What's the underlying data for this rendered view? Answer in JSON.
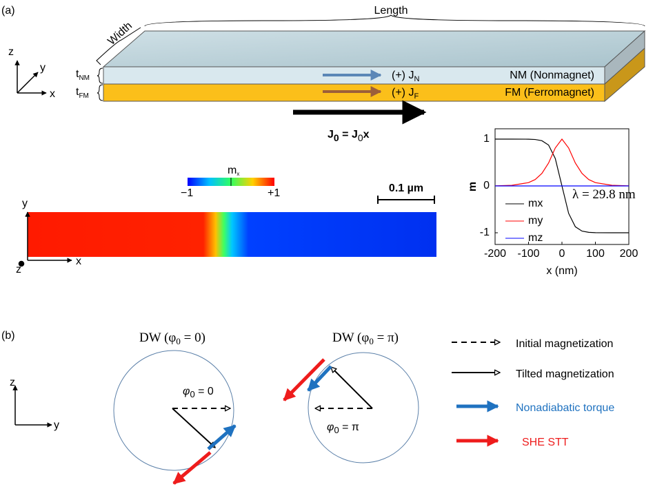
{
  "panel_a": {
    "label": "(a)",
    "length": "Length",
    "width": "Width",
    "axes": {
      "z": "z",
      "y": "y",
      "x": "x"
    },
    "t_nm": {
      "main": "t",
      "sub": "NM"
    },
    "t_fm": {
      "main": "t",
      "sub": "FM"
    },
    "current_n": {
      "main": "(+) J",
      "sub": "N"
    },
    "nm_layer": "NM (Nonmagnet)",
    "current_f": {
      "main": "(+) J",
      "sub": "F"
    },
    "fm_layer": "FM (Ferromagnet)",
    "total_current": {
      "lhs": "J",
      "lhs_sub": "0",
      "eq": " = J",
      "rhs_sub": "0",
      "rhs": "x"
    },
    "colorbar": {
      "label_main": "m",
      "label_sub": "x",
      "min": "−1",
      "max": "+1"
    },
    "scale_bar": "0.1 µm",
    "wire_axes": {
      "y": "y",
      "z": "z",
      "x": "x"
    }
  },
  "chart_data": {
    "type": "line",
    "ylabel": "m",
    "xlabel": "x (nm)",
    "annotation": "λ = 29.8 nm",
    "x": [
      -200,
      -150,
      -100,
      -80,
      -60,
      -40,
      -20,
      0,
      20,
      40,
      60,
      80,
      100,
      150,
      200
    ],
    "series": [
      {
        "name": "mx",
        "color": "#000000",
        "values": [
          1,
          1,
          0.998,
          0.991,
          0.965,
          0.872,
          0.586,
          0,
          -0.586,
          -0.872,
          -0.965,
          -0.991,
          -0.998,
          -1,
          -1
        ]
      },
      {
        "name": "my",
        "color": "#ff0000",
        "values": [
          0.002,
          0.013,
          0.07,
          0.136,
          0.267,
          0.489,
          0.81,
          1,
          0.81,
          0.489,
          0.267,
          0.136,
          0.07,
          0.013,
          0.002
        ]
      },
      {
        "name": "mz",
        "color": "#0000ff",
        "values": [
          0,
          0,
          0,
          0,
          0,
          0,
          0,
          0,
          0,
          0,
          0,
          0,
          0,
          0,
          0
        ]
      }
    ],
    "xlim": [
      -200,
      200
    ],
    "xticks": [
      -200,
      -100,
      0,
      100,
      200
    ],
    "ylim": [
      -1.25,
      1.22
    ],
    "yticks": [
      -1,
      0,
      1
    ]
  },
  "panel_b": {
    "label": "(b)",
    "axes": {
      "z": "z",
      "y": "y"
    },
    "dw_left": {
      "pre": "DW (φ",
      "sub": "0",
      "post": " = 0)"
    },
    "dw_right": {
      "pre": "DW (φ",
      "sub": "0",
      "post": " = π)"
    },
    "phi_left": {
      "pre": "φ",
      "sub": "0",
      "post": " = 0"
    },
    "phi_right": {
      "pre": "φ",
      "sub": "0",
      "post": " = π"
    },
    "legend": [
      "Initial magnetization",
      "Tilted magnetization",
      "Nonadiabatic torque",
      "SHE STT"
    ]
  }
}
